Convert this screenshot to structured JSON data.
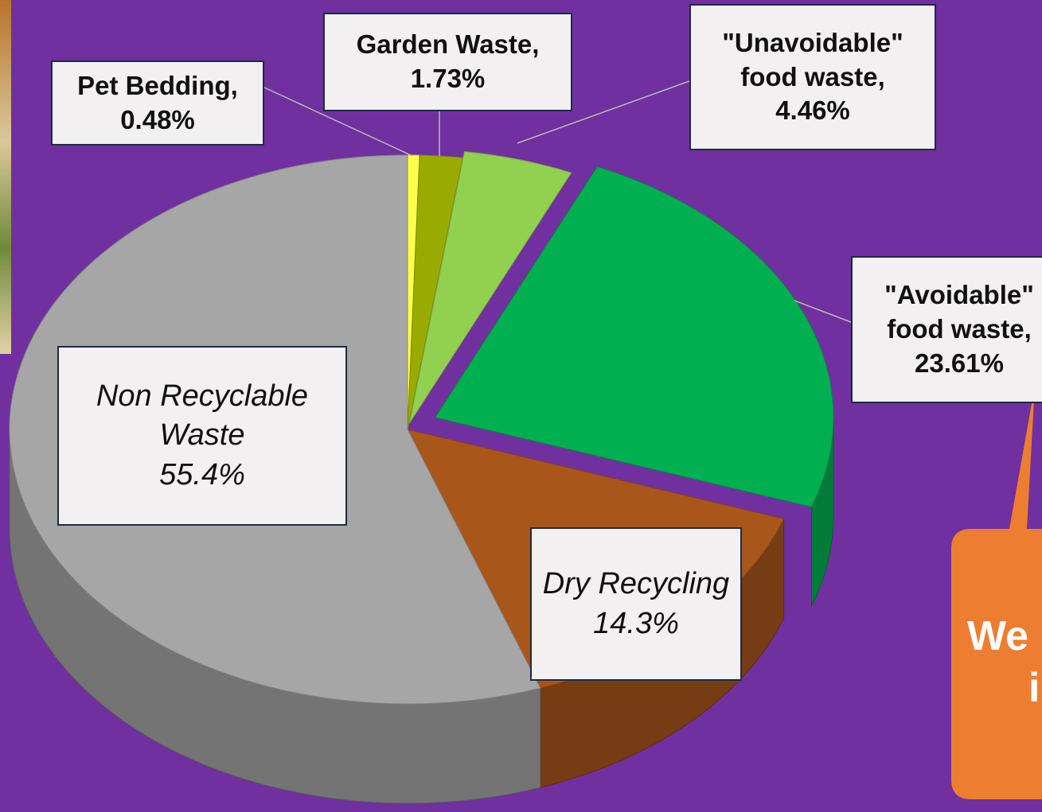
{
  "chart_data": {
    "type": "pie",
    "categories": [
      "Pet Bedding,",
      "Garden Waste,",
      "\"Unavoidable\" food waste,",
      "\"Avoidable\" food waste,",
      "Dry Recycling",
      "Non Recyclable Waste"
    ],
    "values": [
      0.48,
      1.73,
      4.46,
      23.61,
      14.3,
      55.4
    ],
    "value_labels": [
      "0.48%",
      "1.73%",
      "4.46%",
      "23.61%",
      "14.3%",
      "55.4%"
    ],
    "colors": [
      "#ffff4d",
      "#9aab00",
      "#92d050",
      "#00b050",
      "#a9561b",
      "#a6a6a6"
    ],
    "annotations": [
      "We",
      "i"
    ]
  }
}
